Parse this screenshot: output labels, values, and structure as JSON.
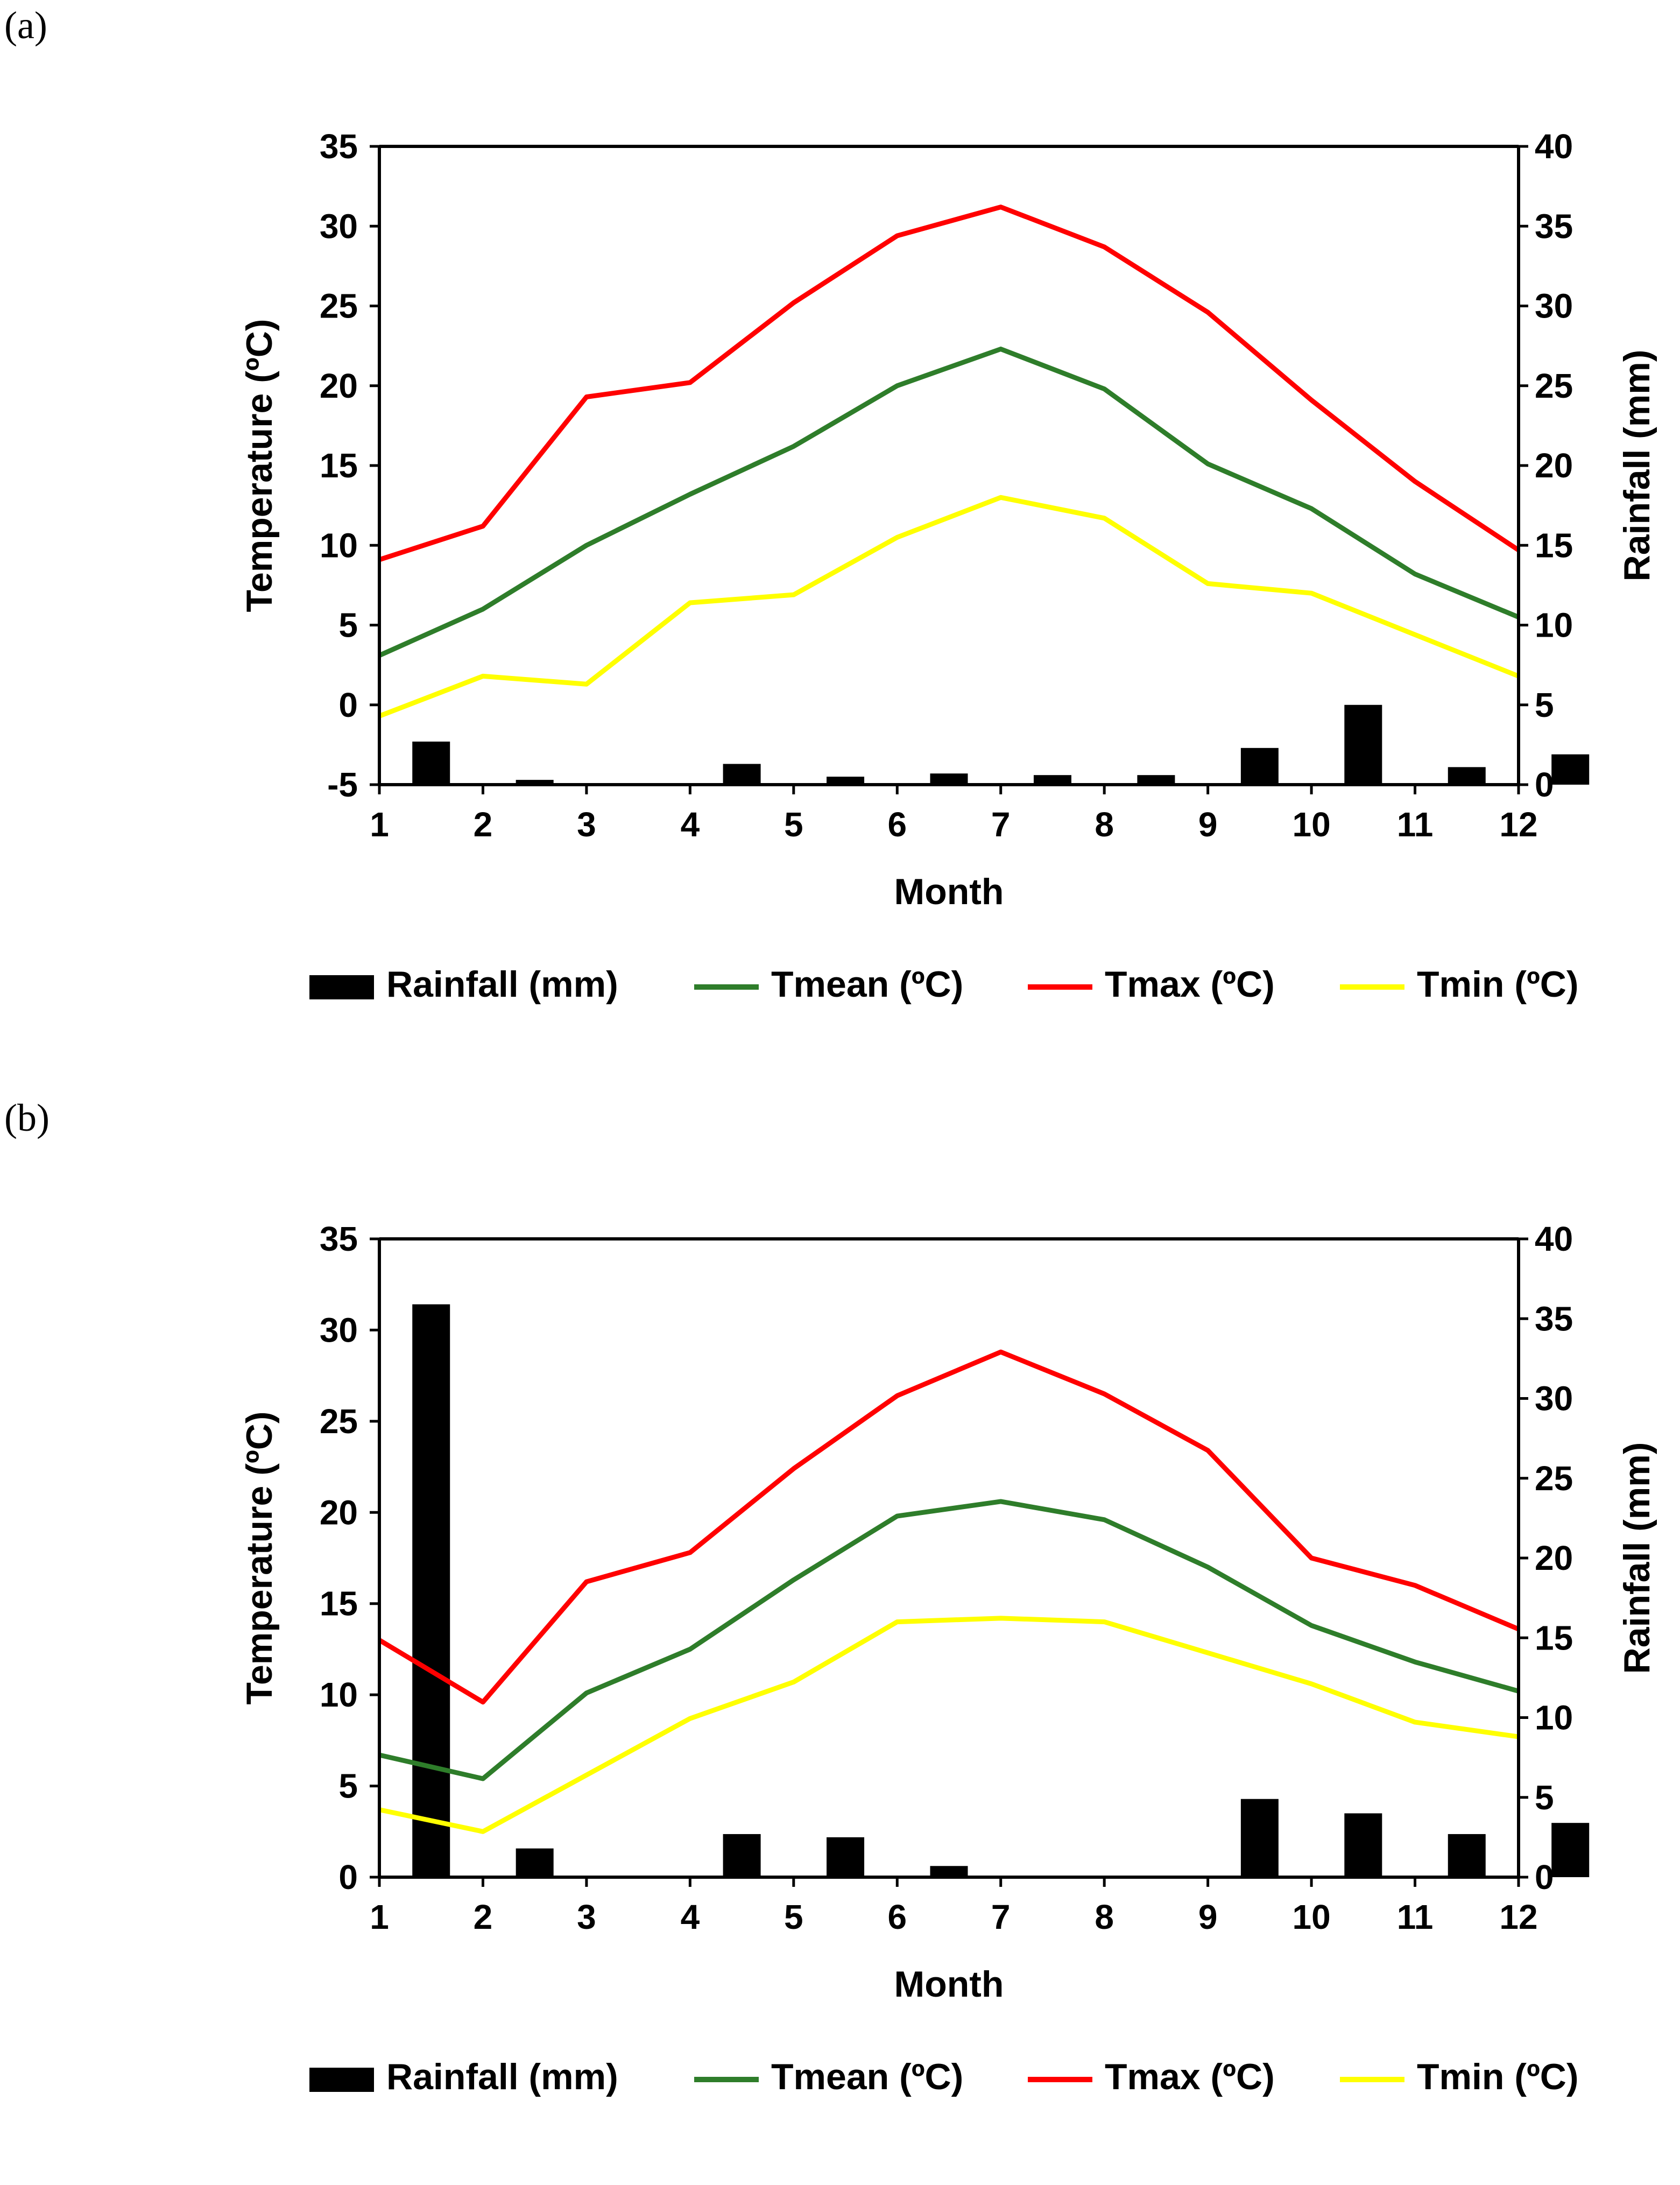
{
  "panels": [
    {
      "label": "(a)",
      "chart_data": {
        "type": "bar+line",
        "x": [
          1,
          2,
          3,
          4,
          5,
          6,
          7,
          8,
          9,
          10,
          11,
          12
        ],
        "xlabel": "Month",
        "ylabel_left": "Temperature (ºC)",
        "ylabel_right": "Rainfall (mm)",
        "ylim_left": [
          -5,
          35
        ],
        "ylim_right": [
          0,
          40
        ],
        "yticks_left": [
          -5,
          0,
          5,
          10,
          15,
          20,
          25,
          30,
          35
        ],
        "yticks_right": [
          0,
          5,
          10,
          15,
          20,
          25,
          30,
          35,
          40
        ],
        "rainfall": [
          2.7,
          0.3,
          0,
          1.3,
          0.5,
          0.7,
          0.6,
          0.6,
          2.3,
          5.0,
          1.1,
          1.9
        ],
        "series": [
          {
            "name": "Tmean (ºC)",
            "color": "#2e7d2a",
            "values": [
              3.1,
              6.0,
              10.0,
              13.2,
              16.2,
              20.0,
              22.3,
              19.8,
              15.1,
              12.3,
              8.2,
              5.5
            ]
          },
          {
            "name": "Tmax (ºC)",
            "color": "#ff0000",
            "values": [
              9.1,
              11.2,
              19.3,
              20.2,
              25.2,
              29.4,
              31.2,
              28.7,
              24.6,
              19.1,
              14.0,
              9.7
            ]
          },
          {
            "name": "Tmin (ºC)",
            "color": "#ffff00",
            "values": [
              -0.7,
              1.8,
              1.3,
              6.4,
              6.9,
              10.5,
              13.0,
              11.7,
              7.6,
              7.0,
              4.4,
              1.8
            ]
          }
        ],
        "legend": [
          "Rainfall (mm)",
          "Tmean (ºC)",
          "Tmax (ºC)",
          "Tmin (ºC)"
        ]
      }
    },
    {
      "label": "(b)",
      "chart_data": {
        "type": "bar+line",
        "x": [
          1,
          2,
          3,
          4,
          5,
          6,
          7,
          8,
          9,
          10,
          11,
          12
        ],
        "xlabel": "Month",
        "ylabel_left": "Temperature (ºC)",
        "ylabel_right": "Rainfall (mm)",
        "ylim_left": [
          0,
          35
        ],
        "ylim_right": [
          0,
          40
        ],
        "yticks_left": [
          0,
          5,
          10,
          15,
          20,
          25,
          30,
          35
        ],
        "yticks_right": [
          0,
          5,
          10,
          15,
          20,
          25,
          30,
          35,
          40
        ],
        "rainfall": [
          35.9,
          1.8,
          0,
          2.7,
          2.5,
          0.7,
          0,
          0,
          4.9,
          4.0,
          2.7,
          3.4
        ],
        "series": [
          {
            "name": "Tmean (ºC)",
            "color": "#2e7d2a",
            "values": [
              6.7,
              5.4,
              10.1,
              12.5,
              16.3,
              19.8,
              20.6,
              19.6,
              17.0,
              13.8,
              11.8,
              10.2
            ]
          },
          {
            "name": "Tmax (ºC)",
            "color": "#ff0000",
            "values": [
              13.0,
              9.6,
              16.2,
              17.8,
              22.4,
              26.4,
              28.8,
              26.5,
              23.4,
              17.5,
              16.0,
              13.6
            ]
          },
          {
            "name": "Tmin (ºC)",
            "color": "#ffff00",
            "values": [
              3.7,
              2.5,
              5.6,
              8.7,
              10.7,
              14.0,
              14.2,
              14.0,
              12.3,
              10.6,
              8.5,
              7.7
            ]
          }
        ],
        "legend": [
          "Rainfall (mm)",
          "Tmean (ºC)",
          "Tmax (ºC)",
          "Tmin (ºC)"
        ]
      }
    }
  ]
}
